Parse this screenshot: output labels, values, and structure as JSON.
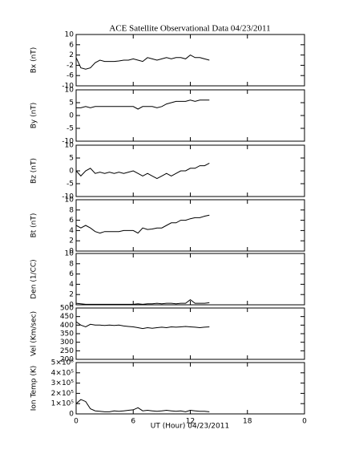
{
  "chart_data": [
    {
      "type": "line",
      "title": "ACE Satellite Observational Data  04/23/2011",
      "ylabel": "Bx (nT)",
      "color": "#000000",
      "x": [
        0,
        0.5,
        1,
        1.5,
        2,
        2.5,
        3,
        3.5,
        4,
        4.5,
        5,
        5.5,
        6,
        6.5,
        7,
        7.5,
        8,
        8.5,
        9,
        9.5,
        10,
        10.5,
        11,
        11.5,
        12,
        12.5,
        13,
        13.5,
        14
      ],
      "values": [
        1,
        -3,
        -3.5,
        -3,
        -1,
        0,
        -0.5,
        -0.5,
        -0.5,
        -0.3,
        0,
        0,
        0.5,
        0,
        -0.5,
        1,
        0.5,
        0,
        0.5,
        1,
        0.5,
        1,
        1,
        0.5,
        2,
        1,
        1,
        0.5,
        0
      ],
      "xlim": [
        0,
        24
      ],
      "ylim": [
        -10,
        10
      ],
      "yticks": [
        -10,
        -6,
        -2,
        2,
        6,
        10
      ]
    },
    {
      "type": "line",
      "ylabel": "By (nT)",
      "color": "#000000",
      "x": [
        0,
        0.5,
        1,
        1.5,
        2,
        2.5,
        3,
        3.5,
        4,
        4.5,
        5,
        5.5,
        6,
        6.5,
        7,
        7.5,
        8,
        8.5,
        9,
        9.5,
        10,
        10.5,
        11,
        11.5,
        12,
        12.5,
        13,
        13.5,
        14
      ],
      "values": [
        3,
        3,
        3.5,
        3,
        3.5,
        3.5,
        3.5,
        3.5,
        3.5,
        3.5,
        3.5,
        3.5,
        3.5,
        2.5,
        3.5,
        3.5,
        3.5,
        3,
        3.5,
        4.5,
        5,
        5.5,
        5.5,
        5.5,
        6,
        5.5,
        6,
        6,
        6
      ],
      "xlim": [
        0,
        24
      ],
      "ylim": [
        -10,
        10
      ],
      "yticks": [
        -10,
        -5,
        0,
        5,
        10
      ]
    },
    {
      "type": "line",
      "ylabel": "Bz (nT)",
      "color": "#000000",
      "x": [
        0,
        0.5,
        1,
        1.5,
        2,
        2.5,
        3,
        3.5,
        4,
        4.5,
        5,
        5.5,
        6,
        6.5,
        7,
        7.5,
        8,
        8.5,
        9,
        9.5,
        10,
        10.5,
        11,
        11.5,
        12,
        12.5,
        13,
        13.5,
        14
      ],
      "values": [
        0,
        -2,
        0,
        1,
        -1,
        -0.5,
        -1,
        -0.5,
        -1,
        -0.5,
        -1,
        -0.5,
        0,
        -1,
        -2,
        -1,
        -2,
        -3,
        -2,
        -1,
        -2,
        -1,
        0,
        0,
        1,
        1,
        2,
        2,
        3
      ],
      "xlim": [
        0,
        24
      ],
      "ylim": [
        -10,
        10
      ],
      "yticks": [
        -10,
        -5,
        0,
        5,
        10
      ]
    },
    {
      "type": "line",
      "ylabel": "Bt (nT)",
      "color": "#000000",
      "x": [
        0,
        0.5,
        1,
        1.5,
        2,
        2.5,
        3,
        3.5,
        4,
        4.5,
        5,
        5.5,
        6,
        6.5,
        7,
        7.5,
        8,
        8.5,
        9,
        9.5,
        10,
        10.5,
        11,
        11.5,
        12,
        12.5,
        13,
        13.5,
        14
      ],
      "values": [
        5,
        4.5,
        5,
        4.5,
        3.8,
        3.5,
        3.8,
        3.8,
        3.8,
        3.8,
        4,
        4,
        4,
        3.5,
        4.5,
        4.2,
        4.3,
        4.5,
        4.5,
        5,
        5.5,
        5.5,
        6,
        6,
        6.3,
        6.5,
        6.5,
        6.8,
        7
      ],
      "xlim": [
        0,
        24
      ],
      "ylim": [
        0,
        10
      ],
      "yticks": [
        0,
        2,
        4,
        6,
        8,
        10
      ]
    },
    {
      "type": "line",
      "ylabel": "Den (1/CC)",
      "color": "#000000",
      "x": [
        0,
        0.5,
        1,
        1.5,
        2,
        2.5,
        3,
        3.5,
        4,
        4.5,
        5,
        5.5,
        6,
        6.5,
        7,
        7.5,
        8,
        8.5,
        9,
        9.5,
        10,
        10.5,
        11,
        11.5,
        12,
        12.5,
        13,
        13.5,
        14
      ],
      "values": [
        0.3,
        0.2,
        0.1,
        0.1,
        0.1,
        0.1,
        0.1,
        0.1,
        0.1,
        0.1,
        0.1,
        0.1,
        0.1,
        0.2,
        0.1,
        0.2,
        0.2,
        0.3,
        0.2,
        0.3,
        0.3,
        0.2,
        0.3,
        0.3,
        1,
        0.3,
        0.3,
        0.3,
        0.4
      ],
      "xlim": [
        0,
        24
      ],
      "ylim": [
        0,
        10
      ],
      "yticks": [
        0,
        2,
        4,
        6,
        8,
        10
      ]
    },
    {
      "type": "line",
      "ylabel": "Vel (Km/sec)",
      "color": "#000000",
      "x": [
        0,
        0.5,
        1,
        1.5,
        2,
        2.5,
        3,
        3.5,
        4,
        4.5,
        5,
        5.5,
        6,
        6.5,
        7,
        7.5,
        8,
        8.5,
        9,
        9.5,
        10,
        10.5,
        11,
        11.5,
        12,
        12.5,
        13,
        13.5,
        14
      ],
      "values": [
        420,
        400,
        390,
        405,
        400,
        400,
        398,
        400,
        398,
        400,
        395,
        392,
        390,
        385,
        380,
        385,
        382,
        385,
        388,
        385,
        390,
        388,
        390,
        392,
        390,
        388,
        385,
        388,
        390
      ],
      "xlim": [
        0,
        24
      ],
      "ylim": [
        200,
        500
      ],
      "yticks": [
        200,
        250,
        300,
        350,
        400,
        450,
        500
      ]
    },
    {
      "type": "line",
      "ylabel": "Ion Temp (K)",
      "xlabel": "UT (Hour)  04/23/2011",
      "color": "#000000",
      "x": [
        0,
        0.5,
        1,
        1.5,
        2,
        2.5,
        3,
        3.5,
        4,
        4.5,
        5,
        5.5,
        6,
        6.5,
        7,
        7.5,
        8,
        8.5,
        9,
        9.5,
        10,
        10.5,
        11,
        11.5,
        12,
        12.5,
        13,
        13.5,
        14
      ],
      "values": [
        100000,
        140000,
        120000,
        50000,
        30000,
        25000,
        20000,
        20000,
        30000,
        25000,
        30000,
        35000,
        40000,
        60000,
        30000,
        35000,
        30000,
        25000,
        30000,
        35000,
        30000,
        25000,
        30000,
        20000,
        35000,
        30000,
        25000,
        25000,
        20000
      ],
      "xlim": [
        0,
        24
      ],
      "xticks": [
        0,
        6,
        12,
        18,
        {
          "value": 24,
          "label": "0"
        }
      ],
      "ylim": [
        0,
        500000
      ],
      "yticks": [
        0,
        {
          "value": 100000,
          "label": "1×10⁵"
        },
        {
          "value": 200000,
          "label": "2×10⁵"
        },
        {
          "value": 300000,
          "label": "3×10⁵"
        },
        {
          "value": 400000,
          "label": "4×10⁵"
        },
        {
          "value": 500000,
          "label": "5×10⁵"
        }
      ]
    }
  ]
}
